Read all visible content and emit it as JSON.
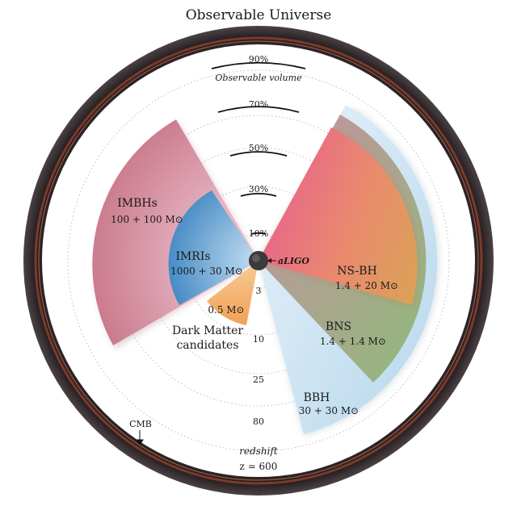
{
  "title": "Observable Universe",
  "volume": {
    "percent_labels": [
      "10%",
      "30%",
      "50%",
      "70%",
      "90%"
    ],
    "caption": "Observable volume"
  },
  "redshift": {
    "z_labels": [
      "3",
      "10",
      "25",
      "80"
    ],
    "caption": "redshift",
    "cmb_value": "z ≃ 600",
    "cmb_label": "CMB"
  },
  "detector": {
    "label": "aLIGO"
  },
  "sources": [
    {
      "name": "IMBHs",
      "mass": "100 + 100 M⊙",
      "color": "#c9788a"
    },
    {
      "name": "IMRIs",
      "mass": "1000 + 30 M⊙",
      "color": "#4f92c8"
    },
    {
      "name": "",
      "mass": "0.5 M⊙",
      "color": "#f3ad63"
    },
    {
      "name": "Dark Matter",
      "name2": "candidates",
      "mass": "",
      "color": "#f3ad63"
    },
    {
      "name": "NS-BH",
      "mass": "1.4 + 20 M⊙",
      "color": "#e58770"
    },
    {
      "name": "BNS",
      "mass": "1.4 + 1.4 M⊙",
      "color": "#9ab88a"
    },
    {
      "name": "BBH",
      "mass": "30 + 30 M⊙",
      "color": "#bcdcee"
    }
  ],
  "colors": {
    "frame_outer": "#2a2224",
    "frame_rim": "#7b3a2c",
    "grid": "#b0b0b0"
  }
}
